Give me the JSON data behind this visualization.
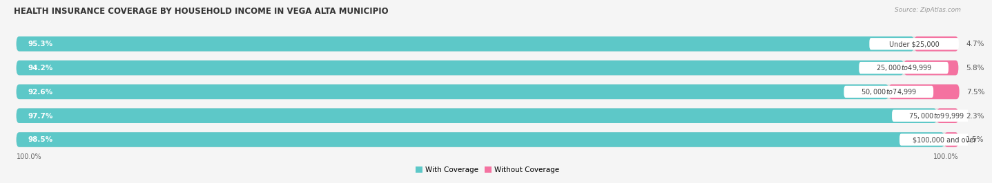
{
  "title": "HEALTH INSURANCE COVERAGE BY HOUSEHOLD INCOME IN VEGA ALTA MUNICIPIO",
  "source": "Source: ZipAtlas.com",
  "categories": [
    "Under $25,000",
    "$25,000 to $49,999",
    "$50,000 to $74,999",
    "$75,000 to $99,999",
    "$100,000 and over"
  ],
  "with_coverage": [
    95.3,
    94.2,
    92.6,
    97.7,
    98.5
  ],
  "without_coverage": [
    4.7,
    5.8,
    7.5,
    2.3,
    1.5
  ],
  "color_with": "#5DC8C8",
  "color_without": "#F472A0",
  "bg_color": "#f5f5f5",
  "bar_bg_color": "#e0e0e0",
  "title_fontsize": 8.5,
  "legend_fontsize": 7.5,
  "pct_fontsize": 7.5,
  "cat_fontsize": 7.0,
  "axis_label_fontsize": 7.0
}
